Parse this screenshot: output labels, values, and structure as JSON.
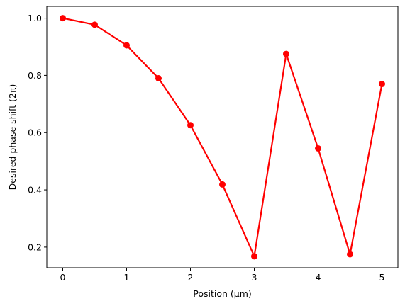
{
  "chart_data": {
    "type": "line",
    "title": "",
    "xlabel": "Position (μm)",
    "ylabel": "Desired phase shift (2π)",
    "x": [
      0,
      0.5,
      1,
      1.5,
      2,
      2.5,
      3,
      3.5,
      4,
      4.5,
      5
    ],
    "series": [
      {
        "values": [
          1.0,
          0.977,
          0.905,
          0.79,
          0.626,
          0.419,
          0.168,
          0.875,
          0.545,
          0.175,
          0.77
        ],
        "color": "#ff0000",
        "marker": "circle"
      }
    ],
    "xlim": [
      -0.25,
      5.25
    ],
    "ylim": [
      0.128,
      1.041
    ],
    "xticks": [
      0,
      1,
      2,
      3,
      4,
      5
    ],
    "xtick_labels": [
      "0",
      "1",
      "2",
      "3",
      "4",
      "5"
    ],
    "yticks": [
      0.2,
      0.4,
      0.6,
      0.8,
      1.0
    ],
    "ytick_labels": [
      "0.2",
      "0.4",
      "0.6",
      "0.8",
      "1.0"
    ],
    "grid": false,
    "legend": "none"
  }
}
